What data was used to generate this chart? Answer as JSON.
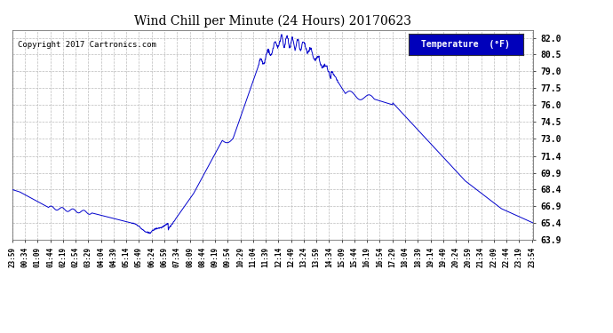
{
  "title": "Wind Chill per Minute (24 Hours) 20170623",
  "copyright": "Copyright 2017 Cartronics.com",
  "legend_label": "Temperature  (°F)",
  "line_color": "#0000CC",
  "background_color": "#ffffff",
  "grid_color": "#bbbbbb",
  "ylim": [
    63.9,
    82.7
  ],
  "yticks": [
    63.9,
    65.4,
    66.9,
    68.4,
    69.9,
    71.4,
    73.0,
    74.5,
    76.0,
    77.5,
    79.0,
    80.5,
    82.0
  ],
  "figsize": [
    6.9,
    3.75
  ],
  "dpi": 100
}
